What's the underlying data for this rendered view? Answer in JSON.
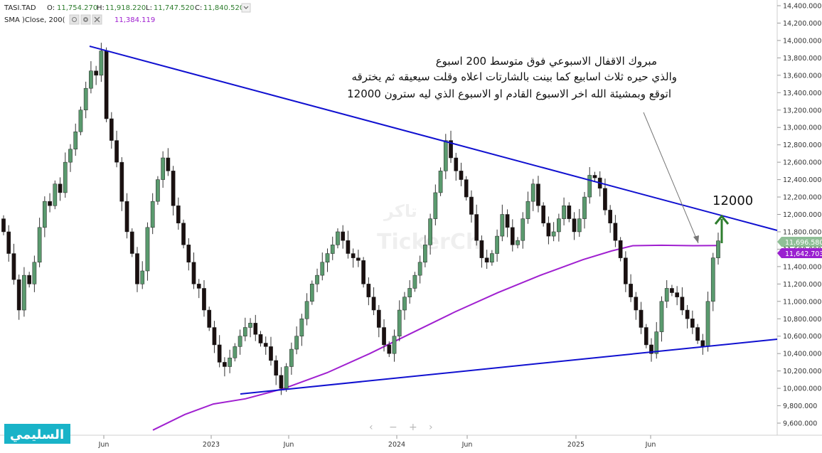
{
  "header": {
    "symbol": "TASI.TAD",
    "open_label": "O:",
    "open": "11,754.270",
    "high_label": "H:",
    "high": "11,918.220",
    "low_label": "L:",
    "low": "11,747.520",
    "close_label": "C:",
    "close": "11,840.520",
    "sma_label": "SMA  )Close, 200(",
    "sma_value": "11,384.119"
  },
  "annotation": {
    "lines": [
      "مبروك الاقفال الاسبوعي فوق متوسط 200 اسبوع",
      "والذي حيره ثلاث اسابيع كما بينت بالشارتات اعلاه وقلت سيعيقه ثم يخترقه",
      "اتوقع وبمشيئة الله  اخر الاسبوع القادم او الاسبوع الذي ليه سترون 12000"
    ],
    "target": "12000"
  },
  "price_badges": {
    "price": "11,696.580",
    "sma": "11,642.703"
  },
  "brand": {
    "name": "السليمي"
  },
  "watermark": {
    "text": "TickerCh",
    "arabic": "تاكر"
  },
  "colors": {
    "up": "#5a9a6e",
    "down": "#1a1010",
    "sma": "#a020d0",
    "trendline": "#1010d0",
    "arrow": "#2e7d2e",
    "brand_bg": "#19b3c8",
    "price_badge": "#8fbf96",
    "sma_badge": "#9a1fd0"
  },
  "chart_data": {
    "type": "candlestick",
    "ylim": [
      9500,
      14500
    ],
    "yticks": [
      9600,
      9800,
      10000,
      10200,
      10400,
      10600,
      10800,
      11000,
      11200,
      11400,
      11600,
      11800,
      12000,
      12200,
      12400,
      12600,
      12800,
      13000,
      13200,
      13400,
      13600,
      13800,
      14000,
      14200,
      14400
    ],
    "ytick_labels": [
      "9,600.000",
      "9,800.000",
      "10,000.000",
      "10,200.000",
      "10,400.000",
      "10,600.000",
      "10,800.000",
      "11,000.000",
      "11,200.000",
      "11,400.000",
      "11,600.000",
      "11,800.000",
      "12,000.000",
      "12,200.000",
      "12,400.000",
      "12,600.000",
      "12,800.000",
      "13,000.000",
      "13,200.000",
      "13,400.000",
      "13,600.000",
      "13,800.000",
      "14,000.000",
      "14,200.000",
      "14,400.000"
    ],
    "xticks": [
      "Jun",
      "2023",
      "Jun",
      "2024",
      "Jun",
      "2025",
      "Jun"
    ],
    "series": [
      {
        "name": "TASI.TAD",
        "type": "candlestick",
        "close": [
          11800,
          11550,
          11250,
          10900,
          11300,
          11200,
          11450,
          11850,
          12150,
          12100,
          12350,
          12250,
          12600,
          12750,
          12950,
          13200,
          13450,
          13650,
          13600,
          13880,
          13100,
          12850,
          12600,
          12150,
          11800,
          11550,
          11200,
          11350,
          11850,
          12150,
          12400,
          12650,
          12500,
          12100,
          11900,
          11650,
          11450,
          11200,
          11150,
          10900,
          10700,
          10500,
          10300,
          10250,
          10350,
          10480,
          10600,
          10700,
          10750,
          10620,
          10520,
          10480,
          10320,
          10150,
          10000,
          10250,
          10450,
          10600,
          10800,
          11000,
          11200,
          11300,
          11450,
          11550,
          11650,
          11800,
          11700,
          11550,
          11500,
          11470,
          11200,
          11050,
          10900,
          10700,
          10500,
          10400,
          10600,
          10900,
          11050,
          11150,
          11300,
          11450,
          11650,
          11950,
          12250,
          12500,
          12850,
          12650,
          12500,
          12400,
          12200,
          12000,
          11700,
          11500,
          11450,
          11550,
          11750,
          12000,
          11850,
          11650,
          11700,
          11950,
          12150,
          12350,
          12100,
          11900,
          11750,
          11800,
          11950,
          12100,
          11950,
          11800,
          11950,
          12200,
          12450,
          12420,
          12300,
          12050,
          11900,
          11700,
          11500,
          11200,
          11050,
          10900,
          10700,
          10500,
          10400,
          10650,
          11000,
          11150,
          11100,
          11050,
          10900,
          10800,
          10700,
          10550,
          10480,
          11000,
          11500,
          11696
        ]
      }
    ],
    "sma_200": {
      "name": "SMA )Close, 200(",
      "values_start": 9520,
      "values_end": 11642
    },
    "annotation_target": 12000,
    "trendlines": [
      {
        "name": "descending-resistance",
        "from_price": 13940,
        "to_price": 11800
      },
      {
        "name": "ascending-support",
        "from_price": 9920,
        "to_price": 10580
      }
    ]
  }
}
